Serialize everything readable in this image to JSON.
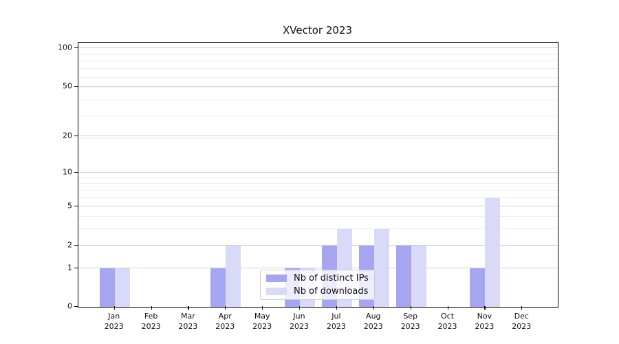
{
  "chart_data": {
    "type": "bar",
    "title": "XVector 2023",
    "categories": [
      {
        "month": "Jan",
        "year": "2023"
      },
      {
        "month": "Feb",
        "year": "2023"
      },
      {
        "month": "Mar",
        "year": "2023"
      },
      {
        "month": "Apr",
        "year": "2023"
      },
      {
        "month": "May",
        "year": "2023"
      },
      {
        "month": "Jun",
        "year": "2023"
      },
      {
        "month": "Jul",
        "year": "2023"
      },
      {
        "month": "Aug",
        "year": "2023"
      },
      {
        "month": "Sep",
        "year": "2023"
      },
      {
        "month": "Oct",
        "year": "2023"
      },
      {
        "month": "Nov",
        "year": "2023"
      },
      {
        "month": "Dec",
        "year": "2023"
      }
    ],
    "series": [
      {
        "name": "Nb of distinct IPs",
        "color": "#a6a6f0",
        "values": [
          1,
          0,
          0,
          1,
          0,
          1,
          2,
          2,
          2,
          0,
          1,
          0
        ]
      },
      {
        "name": "Nb of downloads",
        "color": "#d9d9f8",
        "values": [
          1,
          0,
          0,
          2,
          0,
          1,
          3,
          3,
          2,
          0,
          6,
          0
        ]
      }
    ],
    "yscale": "log1p",
    "yticks": [
      0,
      1,
      2,
      5,
      10,
      20,
      50,
      100
    ],
    "ylim": [
      0,
      111
    ],
    "grid": true,
    "legend_position": "lower center",
    "colors": {
      "grid_major": "#cfcfcf",
      "grid_minor": "#ededed",
      "axis": "#000000"
    }
  }
}
